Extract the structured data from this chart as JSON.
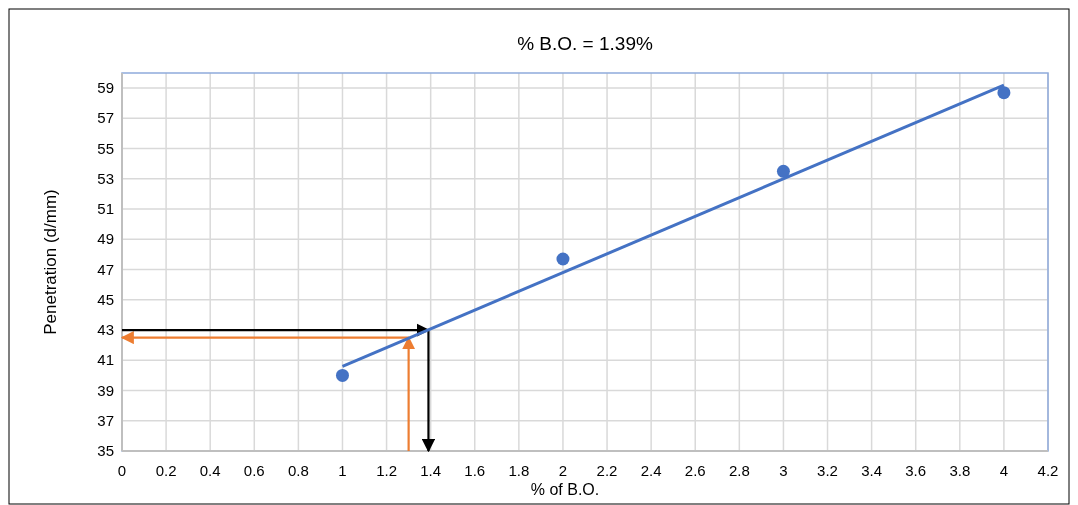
{
  "chart_data": {
    "type": "scatter",
    "title": "% B.O. = 1.39%",
    "xlabel": "% of B.O.",
    "ylabel": "Penetration (d/mm)",
    "xlim": [
      0,
      4.2
    ],
    "xticks": [
      0,
      0.2,
      0.4,
      0.6,
      0.8,
      1,
      1.2,
      1.4,
      1.6,
      1.8,
      2,
      2.2,
      2.4,
      2.6,
      2.8,
      3,
      3.2,
      3.4,
      3.6,
      3.8,
      4,
      4.2
    ],
    "ylim": [
      35,
      60
    ],
    "yticks": [
      35,
      37,
      39,
      41,
      43,
      45,
      47,
      49,
      51,
      53,
      55,
      57,
      59
    ],
    "grid": true,
    "series": [
      {
        "color": "#4472c4",
        "x": [
          1,
          2,
          3,
          4
        ],
        "values": [
          40,
          47.7,
          53.5,
          58.7
        ]
      },
      {
        "type": "line",
        "color": "#4472c4",
        "x": [
          1,
          4
        ],
        "values": [
          40.6,
          59.2
        ]
      },
      {
        "type": "line",
        "color": "#000000",
        "x": [
          0,
          1.39
        ],
        "values": [
          43,
          43
        ]
      },
      {
        "type": "line",
        "color": "#000000",
        "x": [
          1.39,
          1.39
        ],
        "values": [
          43,
          35
        ]
      },
      {
        "type": "line",
        "color": "#ed7d31",
        "x": [
          1.3,
          1.3
        ],
        "values": [
          35,
          42.5
        ]
      },
      {
        "type": "line",
        "color": "#ed7d31",
        "x": [
          1.3,
          0
        ],
        "values": [
          42.5,
          42.5
        ]
      }
    ]
  }
}
